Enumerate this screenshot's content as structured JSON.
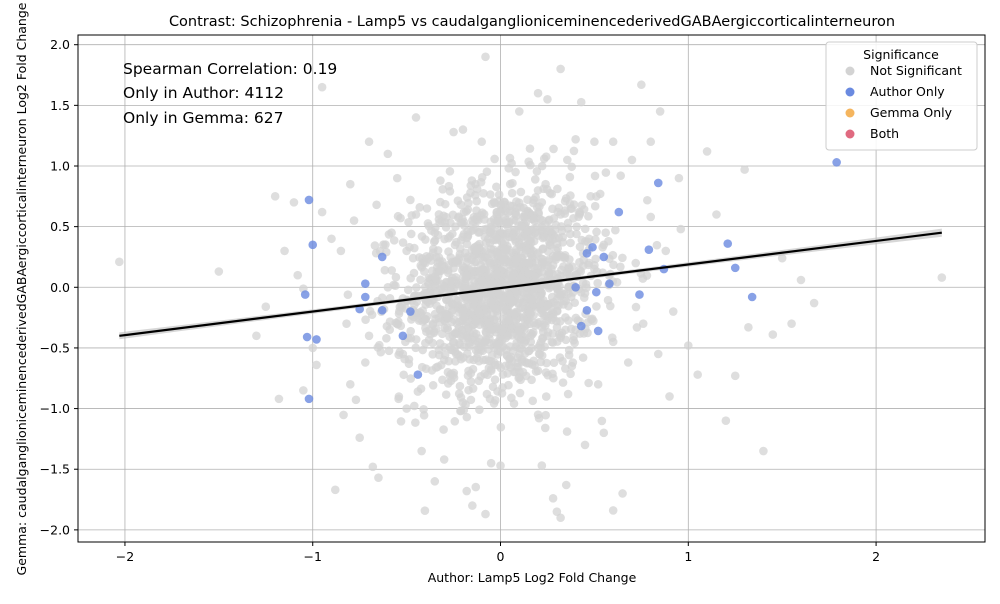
{
  "chart_data": {
    "type": "scatter",
    "title": "Contrast: Schizophrenia - Lamp5 vs caudalganglioniceminencederivedGABAergiccorticalinterneuron",
    "xlabel": "Author: Lamp5 Log2 Fold Change",
    "ylabel": "Gemma: caudalganglioniceminencederivedGABAergiccorticalinterneuron Log2 Fold Change",
    "xlim": [
      -2.25,
      2.58
    ],
    "ylim": [
      -2.1,
      2.08
    ],
    "xticks": [
      -2,
      -1,
      0,
      1,
      2
    ],
    "yticks": [
      -2.0,
      -1.5,
      -1.0,
      -0.5,
      0.0,
      0.5,
      1.0,
      1.5,
      2.0
    ],
    "grid": true,
    "annotations": [
      "Spearman Correlation: 0.19",
      "Only in Author: 4112",
      "Only in Gemma: 627"
    ],
    "legend": {
      "title": "Significance",
      "placement": "top-right",
      "entries": [
        {
          "name": "Not Significant",
          "color": "#d3d3d3"
        },
        {
          "name": "Author Only",
          "color": "#6a8ae0"
        },
        {
          "name": "Gemma Only",
          "color": "#f5b55e"
        },
        {
          "name": "Both",
          "color": "#e06a80"
        }
      ]
    },
    "regression": {
      "x": [
        -2.03,
        2.35
      ],
      "y": [
        -0.4,
        0.45
      ],
      "color": "#000000"
    },
    "series": [
      {
        "name": "Not Significant",
        "color": "#d3d3d3",
        "points": [
          [
            -2.03,
            0.21
          ],
          [
            -1.5,
            0.13
          ],
          [
            -1.3,
            -0.4
          ],
          [
            -1.2,
            0.75
          ],
          [
            -1.1,
            0.7
          ],
          [
            -1.18,
            -0.92
          ],
          [
            -1.15,
            0.3
          ],
          [
            -1.05,
            -0.85
          ],
          [
            -1.0,
            -0.5
          ],
          [
            -0.95,
            1.65
          ],
          [
            -0.88,
            -1.67
          ],
          [
            -0.9,
            0.4
          ],
          [
            -0.8,
            -0.8
          ],
          [
            -0.8,
            0.85
          ],
          [
            -0.75,
            -1.24
          ],
          [
            -0.7,
            1.2
          ],
          [
            -0.68,
            -1.48
          ],
          [
            -0.65,
            -1.57
          ],
          [
            -0.6,
            1.1
          ],
          [
            -0.55,
            0.9
          ],
          [
            -0.5,
            -1.0
          ],
          [
            -0.45,
            1.4
          ],
          [
            -0.42,
            -1.35
          ],
          [
            -0.35,
            -1.6
          ],
          [
            -0.3,
            -1.42
          ],
          [
            -0.25,
            1.28
          ],
          [
            -0.2,
            1.3
          ],
          [
            -0.18,
            -1.68
          ],
          [
            -0.15,
            -1.8
          ],
          [
            -0.1,
            1.2
          ],
          [
            -0.08,
            -1.87
          ],
          [
            -0.05,
            -1.45
          ],
          [
            -0.08,
            1.9
          ],
          [
            0.0,
            -1.47
          ],
          [
            0.1,
            1.45
          ],
          [
            0.2,
            1.6
          ],
          [
            0.22,
            -1.47
          ],
          [
            0.25,
            1.55
          ],
          [
            0.28,
            -1.74
          ],
          [
            0.3,
            -1.85
          ],
          [
            0.32,
            1.8
          ],
          [
            0.32,
            -1.9
          ],
          [
            0.35,
            -1.63
          ],
          [
            0.4,
            1.22
          ],
          [
            0.45,
            -1.3
          ],
          [
            0.5,
            1.2
          ],
          [
            0.55,
            -1.2
          ],
          [
            0.6,
            1.2
          ],
          [
            0.6,
            -1.84
          ],
          [
            0.65,
            -1.7
          ],
          [
            0.7,
            1.05
          ],
          [
            0.75,
            1.67
          ],
          [
            0.8,
            1.2
          ],
          [
            0.85,
            1.45
          ],
          [
            0.9,
            -0.9
          ],
          [
            0.95,
            0.9
          ],
          [
            1.0,
            -0.48
          ],
          [
            1.05,
            -0.72
          ],
          [
            1.1,
            1.12
          ],
          [
            1.15,
            0.6
          ],
          [
            1.2,
            -1.1
          ],
          [
            1.25,
            -0.73
          ],
          [
            1.3,
            0.97
          ],
          [
            1.32,
            -0.33
          ],
          [
            1.4,
            -1.35
          ],
          [
            1.45,
            -0.39
          ],
          [
            1.5,
            0.24
          ],
          [
            1.55,
            -0.3
          ],
          [
            1.6,
            0.06
          ],
          [
            1.67,
            -0.13
          ],
          [
            2.35,
            0.08
          ],
          [
            -1.25,
            -0.16
          ],
          [
            -1.08,
            0.1
          ],
          [
            -0.98,
            -0.64
          ],
          [
            -0.95,
            0.62
          ],
          [
            -0.85,
            0.3
          ],
          [
            -0.82,
            -0.3
          ],
          [
            -0.78,
            0.55
          ],
          [
            -0.72,
            -0.62
          ],
          [
            -0.66,
            0.68
          ],
          [
            -0.62,
            -0.18
          ],
          [
            -0.58,
            0.45
          ],
          [
            -0.52,
            -0.55
          ],
          [
            -0.48,
            0.72
          ],
          [
            -0.44,
            -0.86
          ],
          [
            -0.4,
            0.2
          ],
          [
            -0.36,
            -0.3
          ],
          [
            -0.32,
            0.88
          ],
          [
            -0.28,
            -0.7
          ],
          [
            -0.24,
            0.5
          ],
          [
            -0.2,
            -0.95
          ],
          [
            -0.16,
            0.78
          ],
          [
            -0.12,
            -0.55
          ],
          [
            -0.08,
            0.3
          ],
          [
            -0.04,
            -0.82
          ],
          [
            0.0,
            0.62
          ],
          [
            0.04,
            -0.4
          ],
          [
            0.08,
            0.95
          ],
          [
            0.12,
            -0.7
          ],
          [
            0.16,
            0.4
          ],
          [
            0.2,
            -1.05
          ],
          [
            0.24,
            0.85
          ],
          [
            0.28,
            -0.25
          ],
          [
            0.32,
            0.6
          ],
          [
            0.36,
            -0.88
          ],
          [
            0.4,
            0.1
          ],
          [
            0.44,
            -0.58
          ],
          [
            0.48,
            0.75
          ],
          [
            0.52,
            -0.8
          ],
          [
            0.56,
            0.45
          ],
          [
            0.6,
            -0.45
          ],
          [
            0.64,
            0.92
          ],
          [
            0.68,
            -0.62
          ],
          [
            0.72,
            0.2
          ],
          [
            0.76,
            -0.3
          ],
          [
            0.8,
            0.58
          ],
          [
            0.84,
            -0.55
          ],
          [
            0.88,
            0.3
          ],
          [
            0.92,
            -0.2
          ],
          [
            0.96,
            0.48
          ],
          [
            -0.6,
            0.0
          ],
          [
            -0.4,
            -0.1
          ],
          [
            -0.3,
            0.15
          ],
          [
            -0.2,
            -0.2
          ],
          [
            -0.1,
            0.05
          ],
          [
            0.05,
            -0.1
          ],
          [
            0.15,
            0.2
          ],
          [
            0.25,
            -0.15
          ],
          [
            0.35,
            0.1
          ],
          [
            0.45,
            -0.05
          ],
          [
            -0.5,
            0.3
          ],
          [
            -0.35,
            0.45
          ],
          [
            -0.25,
            -0.45
          ],
          [
            -0.15,
            0.55
          ],
          [
            -0.05,
            -0.35
          ],
          [
            0.1,
            0.35
          ],
          [
            0.2,
            -0.5
          ],
          [
            0.3,
            0.25
          ],
          [
            0.4,
            -0.35
          ],
          [
            0.5,
            0.15
          ],
          [
            -0.7,
            -0.4
          ],
          [
            -0.55,
            -0.3
          ],
          [
            -0.45,
            0.6
          ],
          [
            -0.3,
            -0.6
          ],
          [
            -0.18,
            0.1
          ],
          [
            -0.02,
            0.4
          ],
          [
            0.12,
            -0.25
          ],
          [
            0.22,
            0.7
          ],
          [
            0.38,
            -0.65
          ],
          [
            0.55,
            0.35
          ]
        ]
      },
      {
        "name": "Author Only",
        "color": "#6a8ae0",
        "points": [
          [
            -1.02,
            0.72
          ],
          [
            -1.0,
            0.35
          ],
          [
            -1.04,
            -0.06
          ],
          [
            -1.03,
            -0.41
          ],
          [
            -1.02,
            -0.92
          ],
          [
            -0.98,
            -0.43
          ],
          [
            -0.72,
            0.03
          ],
          [
            -0.63,
            0.25
          ],
          [
            -0.63,
            -0.19
          ],
          [
            -0.44,
            -0.72
          ],
          [
            -0.72,
            -0.08
          ],
          [
            -0.75,
            -0.18
          ],
          [
            -0.52,
            -0.4
          ],
          [
            -0.48,
            -0.2
          ],
          [
            0.46,
            0.28
          ],
          [
            0.49,
            0.33
          ],
          [
            0.46,
            -0.19
          ],
          [
            0.51,
            -0.04
          ],
          [
            0.55,
            0.25
          ],
          [
            0.52,
            -0.36
          ],
          [
            0.58,
            0.03
          ],
          [
            0.63,
            0.62
          ],
          [
            0.74,
            -0.06
          ],
          [
            0.79,
            0.31
          ],
          [
            0.84,
            0.86
          ],
          [
            0.87,
            0.15
          ],
          [
            1.21,
            0.36
          ],
          [
            1.25,
            0.16
          ],
          [
            1.34,
            -0.08
          ],
          [
            1.79,
            1.03
          ],
          [
            0.43,
            -0.32
          ],
          [
            0.4,
            0.0
          ]
        ]
      }
    ]
  }
}
